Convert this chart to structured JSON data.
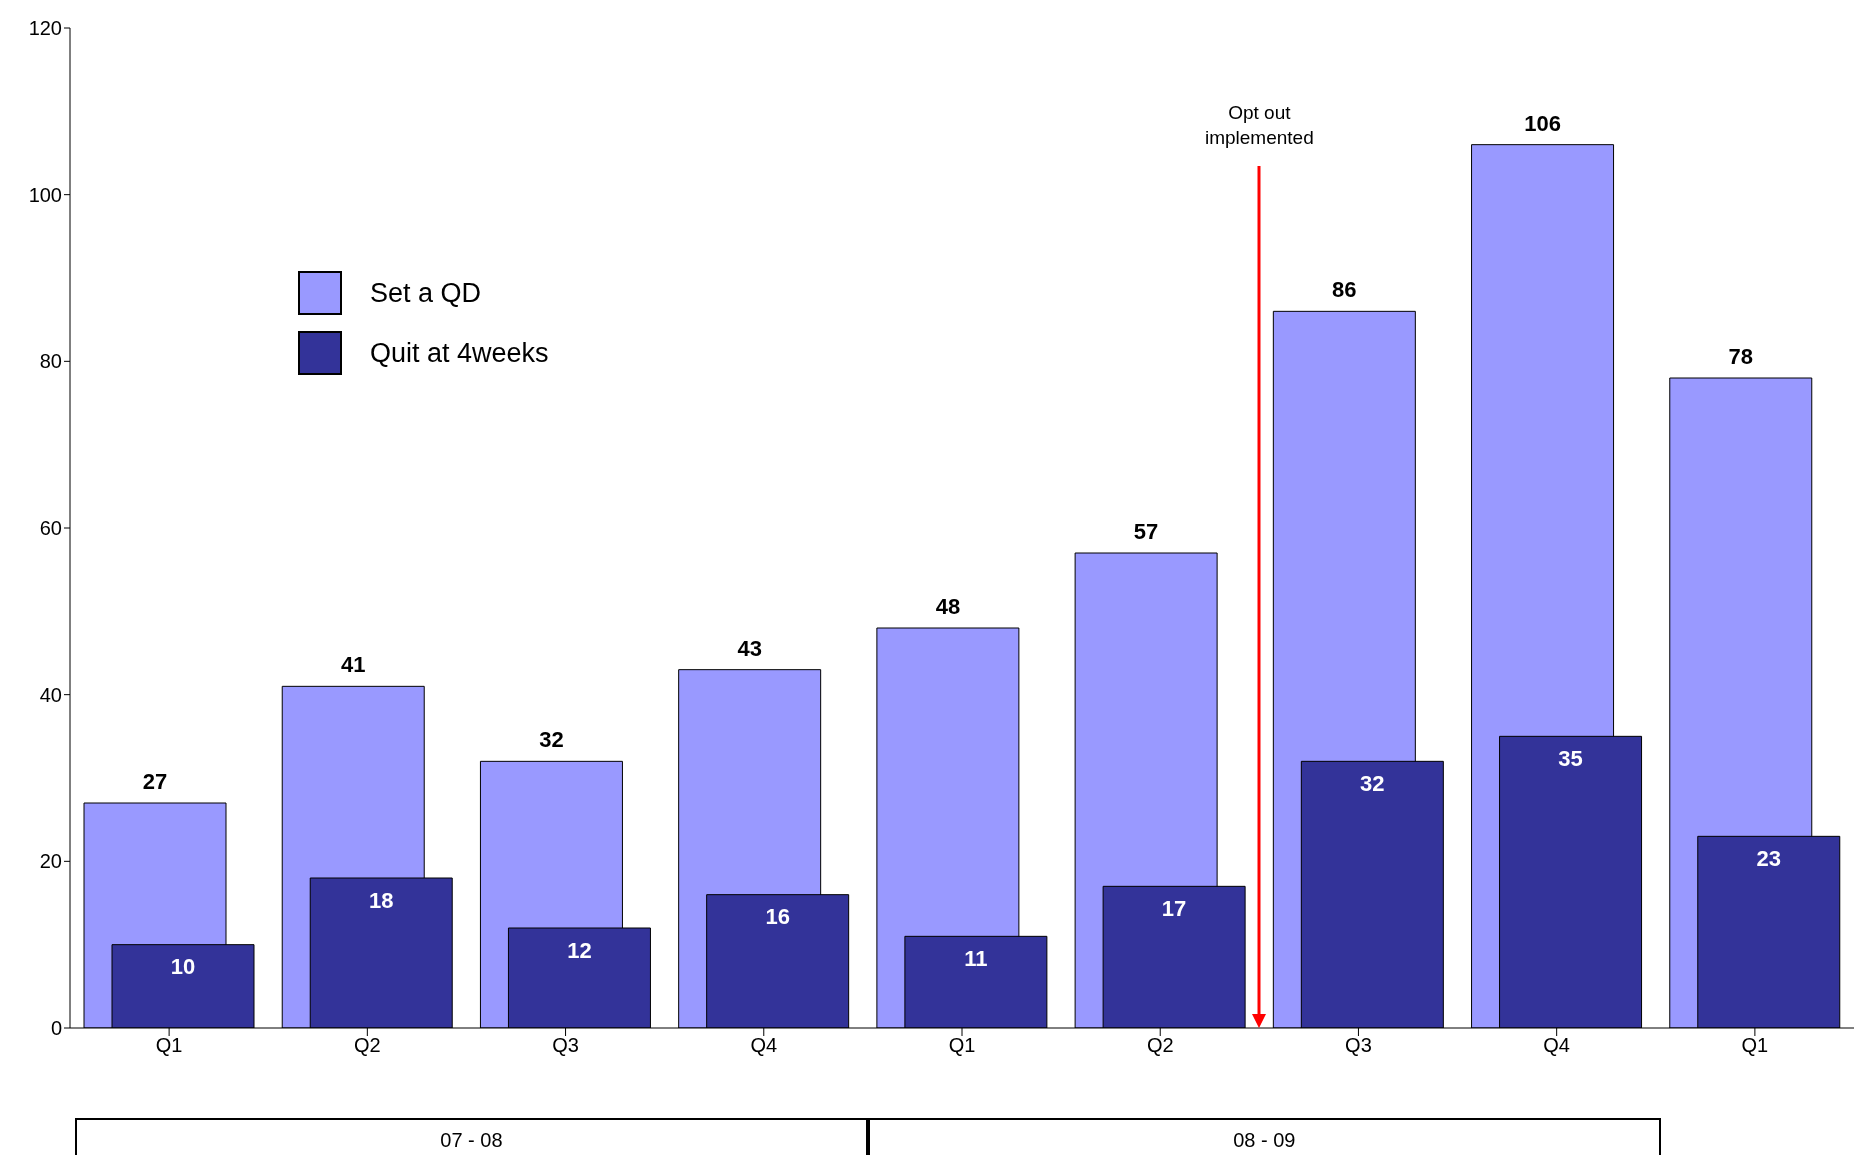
{
  "chart_data": {
    "type": "bar",
    "categories": [
      "Q1",
      "Q2",
      "Q3",
      "Q4",
      "Q1",
      "Q2",
      "Q3",
      "Q4",
      "Q1"
    ],
    "series": [
      {
        "name": "Set a QD",
        "color": "#9999ff",
        "values": [
          27,
          41,
          32,
          43,
          48,
          57,
          86,
          106,
          78
        ]
      },
      {
        "name": "Quit at 4weeks",
        "color": "#333399",
        "values": [
          10,
          18,
          12,
          16,
          11,
          17,
          32,
          35,
          23
        ]
      }
    ],
    "ylim": [
      0,
      120
    ],
    "yticks": [
      0,
      20,
      40,
      60,
      80,
      100,
      120
    ],
    "grid": false,
    "legend": "top left",
    "data_labels": true,
    "annotations": [
      "Opt out implemented",
      "07 - 08",
      "08 - 09"
    ]
  }
}
